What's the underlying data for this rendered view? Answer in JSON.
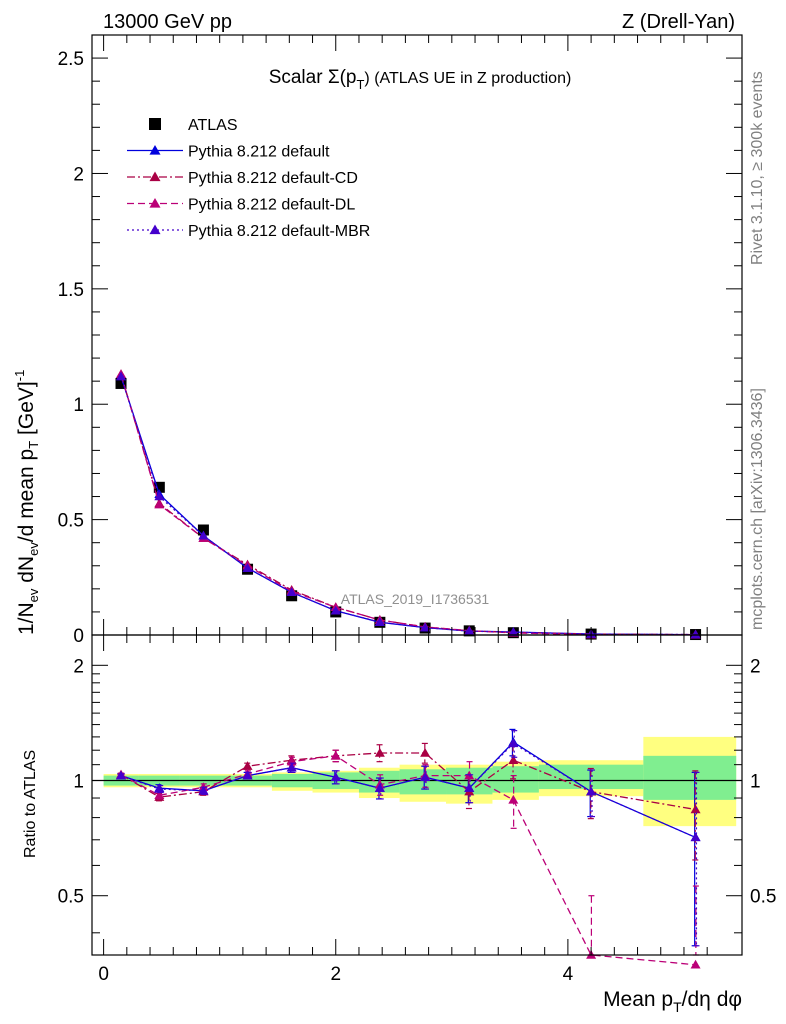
{
  "header": {
    "energy_label": "13000 GeV pp",
    "process_label": "Z (Drell-Yan)"
  },
  "side": {
    "rivet_label": "Rivet 3.1.10, ≥ 300k events",
    "source_label": "mcplots.cern.ch [arXiv:1306.3436]"
  },
  "chart_data": [
    {
      "type": "scatter",
      "title": "Scalar Σ(p_T) (ATLAS UE in Z production)",
      "title_parts": {
        "pre": "Scalar Σ(p",
        "sub": "T",
        "post": ") (ATLAS UE in Z production)"
      },
      "ylabel": "1/N_ev dN_ev/d mean p_T [GeV]^-1",
      "ylabel_parts": {
        "a": "1/N",
        "a_sub": "ev",
        "b": " dN",
        "b_sub": "ev",
        "c": "/d mean p",
        "c_sub": "T",
        "d": " [GeV]",
        "d_sup": "-1"
      },
      "ylim": [
        0,
        2.6
      ],
      "yticks": [
        0,
        0.5,
        1,
        1.5,
        2,
        2.5
      ],
      "ytick_labels": [
        "0",
        "0.5",
        "1",
        "1.5",
        "2",
        "2.5"
      ],
      "xlim": [
        -0.1,
        5.5
      ],
      "analysis_label": "ATLAS_2019_I1736531",
      "x": [
        0.15,
        0.48,
        0.86,
        1.24,
        1.62,
        2.0,
        2.38,
        2.77,
        3.15,
        3.53,
        4.2,
        5.1
      ],
      "series": [
        {
          "name": "ATLAS",
          "marker": "square",
          "color": "#000000",
          "values": [
            1.09,
            0.64,
            0.455,
            0.285,
            0.17,
            0.1,
            0.055,
            0.03,
            0.018,
            0.01,
            0.004,
            0.002
          ]
        },
        {
          "name": "Pythia 8.212 default",
          "marker": "triangle",
          "line": "solid",
          "color": "#0000dd",
          "values": [
            1.12,
            0.61,
            0.43,
            0.29,
            0.185,
            0.105,
            0.055,
            0.032,
            0.017,
            0.013,
            0.004,
            0.0015
          ]
        },
        {
          "name": "Pythia 8.212 default-CD",
          "marker": "triangle",
          "line": "dashdot",
          "color": "#aa0044",
          "values": [
            1.13,
            0.57,
            0.42,
            0.305,
            0.195,
            0.12,
            0.065,
            0.035,
            0.018,
            0.011,
            0.004,
            0.0018
          ]
        },
        {
          "name": "Pythia 8.212 default-DL",
          "marker": "triangle",
          "line": "dashed",
          "color": "#bb0077",
          "values": [
            1.13,
            0.565,
            0.42,
            0.3,
            0.19,
            0.12,
            0.065,
            0.035,
            0.019,
            0.009,
            0.0015,
            0.0008
          ]
        },
        {
          "name": "Pythia 8.212 default-MBR",
          "marker": "triangle",
          "line": "dotted",
          "color": "#4400cc",
          "values": [
            1.12,
            0.6,
            0.43,
            0.29,
            0.185,
            0.105,
            0.056,
            0.032,
            0.017,
            0.012,
            0.004,
            0.0016
          ]
        }
      ]
    },
    {
      "type": "scatter",
      "title": "",
      "ylabel": "Ratio to ATLAS",
      "xlabel": "Mean p_T/dη dφ",
      "xlabel_parts": {
        "pre": "Mean p",
        "sub": "T",
        "post": "/dη dφ"
      },
      "ylim": [
        0.35,
        2.4
      ],
      "yscale": "log",
      "yticks": [
        0.5,
        1,
        2
      ],
      "ytick_labels": [
        "0.5",
        "1",
        "2"
      ],
      "xlim": [
        -0.1,
        5.5
      ],
      "xticks": [
        0,
        2,
        4
      ],
      "xtick_labels": [
        "0",
        "2",
        "4"
      ],
      "x": [
        0.15,
        0.48,
        0.86,
        1.24,
        1.62,
        2.0,
        2.38,
        2.77,
        3.15,
        3.53,
        4.2,
        5.1
      ],
      "x_edges": [
        0.0,
        0.3,
        0.65,
        1.05,
        1.45,
        1.8,
        2.2,
        2.55,
        2.95,
        3.35,
        3.75,
        4.65,
        5.45
      ],
      "band_green": [
        [
          0.97,
          1.03
        ],
        [
          0.97,
          1.03
        ],
        [
          0.97,
          1.03
        ],
        [
          0.97,
          1.03
        ],
        [
          0.96,
          1.04
        ],
        [
          0.95,
          1.05
        ],
        [
          0.93,
          1.06
        ],
        [
          0.92,
          1.07
        ],
        [
          0.92,
          1.08
        ],
        [
          0.93,
          1.09
        ],
        [
          0.95,
          1.1
        ],
        [
          0.89,
          1.16
        ]
      ],
      "band_yellow": [
        [
          0.96,
          1.04
        ],
        [
          0.96,
          1.04
        ],
        [
          0.96,
          1.04
        ],
        [
          0.96,
          1.04
        ],
        [
          0.94,
          1.05
        ],
        [
          0.93,
          1.06
        ],
        [
          0.9,
          1.08
        ],
        [
          0.88,
          1.1
        ],
        [
          0.87,
          1.1
        ],
        [
          0.89,
          1.12
        ],
        [
          0.91,
          1.13
        ],
        [
          0.76,
          1.3
        ]
      ],
      "series": [
        {
          "name": "Pythia 8.212 default",
          "color": "#0000dd",
          "line": "solid",
          "values": [
            1.03,
            0.955,
            0.94,
            1.03,
            1.08,
            1.02,
            0.955,
            1.02,
            0.955,
            1.26,
            0.935,
            0.71
          ],
          "errors": [
            0.01,
            0.02,
            0.02,
            0.02,
            0.03,
            0.04,
            0.06,
            0.07,
            0.08,
            0.1,
            0.13,
            0.34
          ]
        },
        {
          "name": "Pythia 8.212 default-CD",
          "color": "#aa0044",
          "line": "dashdot",
          "values": [
            1.035,
            0.905,
            0.935,
            1.09,
            1.13,
            1.16,
            1.18,
            1.18,
            0.935,
            1.13,
            0.935,
            0.84
          ],
          "errors": [
            0.01,
            0.02,
            0.02,
            0.02,
            0.03,
            0.04,
            0.06,
            0.07,
            0.09,
            0.12,
            0.14,
            0.22
          ]
        },
        {
          "name": "Pythia 8.212 default-DL",
          "color": "#bb0077",
          "line": "dashed",
          "values": [
            1.035,
            0.915,
            0.96,
            1.04,
            1.12,
            1.16,
            0.975,
            1.03,
            1.03,
            0.89,
            0.35,
            0.33
          ],
          "errors": [
            0.01,
            0.02,
            0.02,
            0.02,
            0.03,
            0.04,
            0.06,
            0.07,
            0.09,
            0.14,
            0.15,
            0.2
          ]
        },
        {
          "name": "Pythia 8.212 default-MBR",
          "color": "#4400cc",
          "line": "dotted",
          "values": [
            1.03,
            0.95,
            0.94,
            1.03,
            1.08,
            1.02,
            0.955,
            1.02,
            0.955,
            1.25,
            0.935,
            0.71
          ],
          "errors": [
            0.01,
            0.02,
            0.02,
            0.02,
            0.03,
            0.04,
            0.06,
            0.07,
            0.08,
            0.1,
            0.13,
            0.34
          ]
        }
      ]
    }
  ]
}
